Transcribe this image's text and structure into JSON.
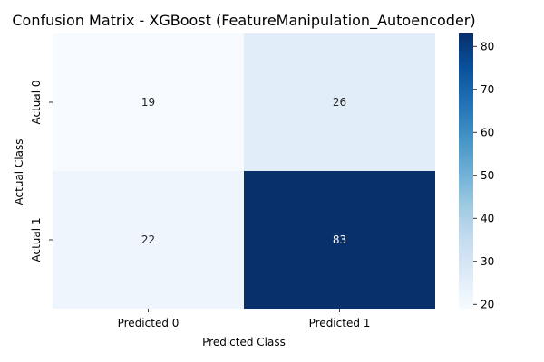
{
  "chart_data": {
    "type": "heatmap",
    "title": "Confusion Matrix - XGBoost (FeatureManipulation_Autoencoder)",
    "xlabel": "Predicted Class",
    "ylabel": "Actual Class",
    "x_categories": [
      "Predicted 0",
      "Predicted 1"
    ],
    "y_categories": [
      "Actual 0",
      "Actual 1"
    ],
    "values": [
      [
        19,
        26
      ],
      [
        22,
        83
      ]
    ],
    "colormap": "Blues",
    "colorbar": {
      "min": 19,
      "max": 83,
      "ticks": [
        20,
        30,
        40,
        50,
        60,
        70,
        80
      ]
    },
    "grid": false,
    "legend": "colorbar-right"
  },
  "colors": {
    "low": "#f7fbff",
    "high": "#08306b"
  }
}
